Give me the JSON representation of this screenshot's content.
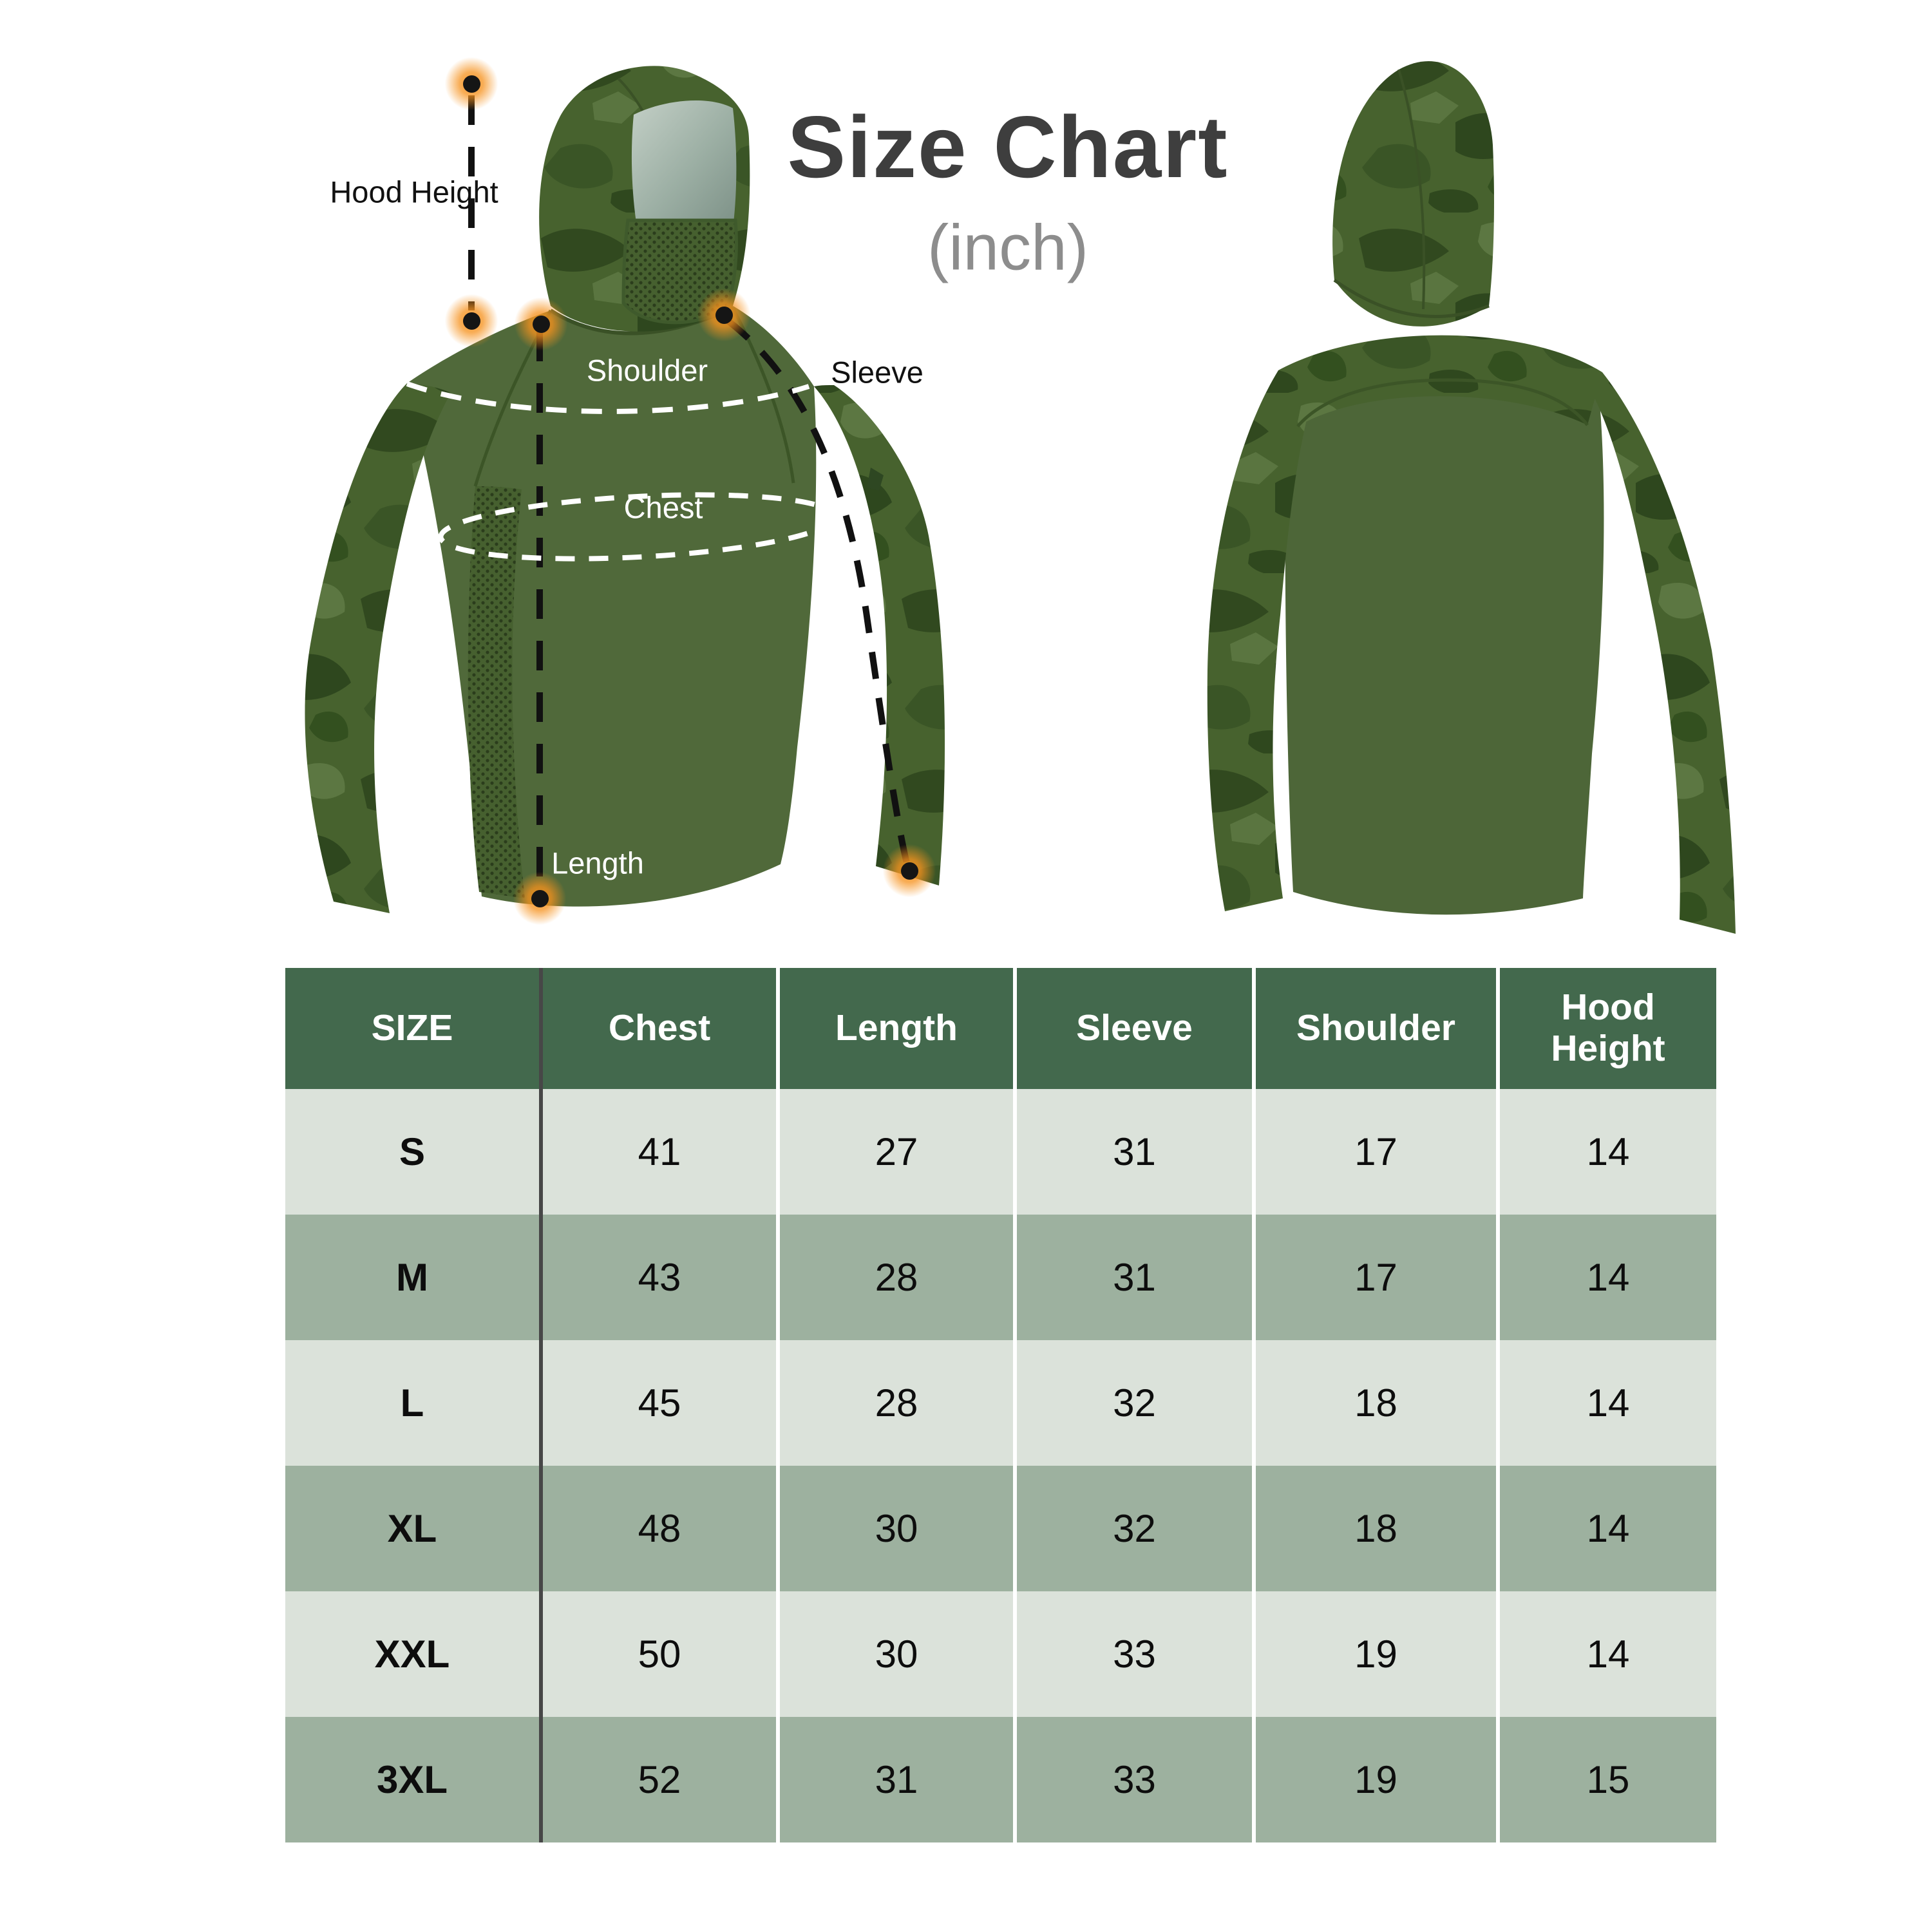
{
  "title": "Size Chart",
  "subtitle": "(inch)",
  "annotations": {
    "hood_height": "Hood Height",
    "shoulder": "Shoulder",
    "chest": "Chest",
    "sleeve": "Sleeve",
    "length": "Length"
  },
  "colors": {
    "header_green": "#43694d",
    "row_light": "#dbe2da",
    "row_sage": "#9db19f",
    "divider_dark": "#474747",
    "accent_orange": "#f6921e",
    "garment_green": "#50693a",
    "camo_dark": "#31491f",
    "title_gray": "#3e3e3e",
    "subtitle_gray": "#8d8d8d"
  },
  "chart_data": {
    "type": "table",
    "title": "Size Chart",
    "unit": "inch",
    "columns": [
      "SIZE",
      "Chest",
      "Length",
      "Sleeve",
      "Shoulder",
      "Hood Height"
    ],
    "rows": [
      [
        "S",
        "41",
        "27",
        "31",
        "17",
        "14"
      ],
      [
        "M",
        "43",
        "28",
        "31",
        "17",
        "14"
      ],
      [
        "L",
        "45",
        "28",
        "32",
        "18",
        "14"
      ],
      [
        "XL",
        "48",
        "30",
        "32",
        "18",
        "14"
      ],
      [
        "XXL",
        "50",
        "30",
        "33",
        "19",
        "14"
      ],
      [
        "3XL",
        "52",
        "31",
        "33",
        "19",
        "15"
      ]
    ]
  }
}
